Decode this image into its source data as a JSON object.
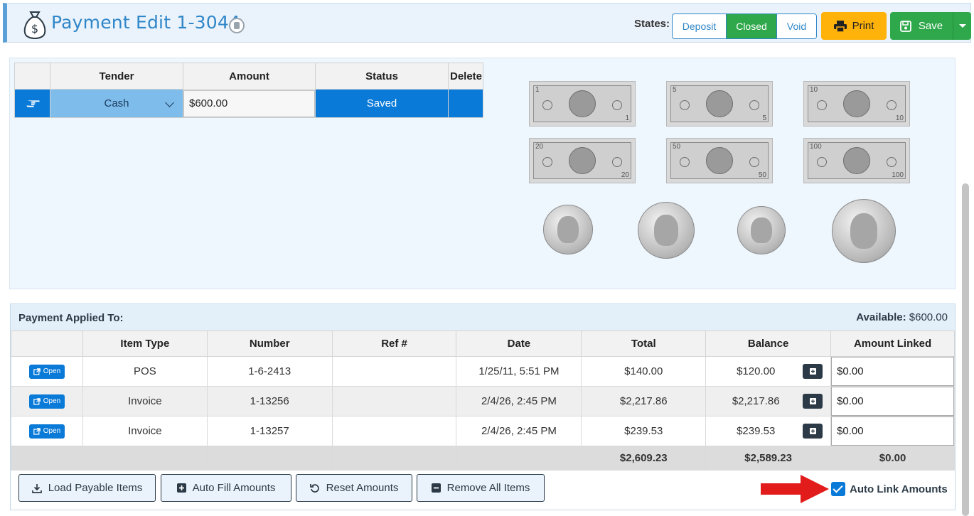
{
  "header": {
    "title": "Payment Edit 1-3044",
    "states_label": "States:",
    "states": [
      {
        "label": "Deposit",
        "active": false
      },
      {
        "label": "Closed",
        "active": true
      },
      {
        "label": "Void",
        "active": false
      }
    ],
    "print_label": "Print",
    "save_label": "Save"
  },
  "tender_table": {
    "columns": [
      "Tender",
      "Amount",
      "Status",
      "Delete"
    ],
    "rows": [
      {
        "tender": "Cash",
        "amount": "$600.00",
        "status": "Saved"
      }
    ]
  },
  "currency": {
    "bills": [
      {
        "name": "one-dollar-bill",
        "corner": "1"
      },
      {
        "name": "five-dollar-bill",
        "corner": "5"
      },
      {
        "name": "ten-dollar-bill",
        "corner": "10"
      },
      {
        "name": "twenty-dollar-bill",
        "corner": "20"
      },
      {
        "name": "fifty-dollar-bill",
        "corner": "50"
      },
      {
        "name": "hundred-dollar-bill",
        "corner": "100"
      }
    ],
    "coins": [
      "penny-coin",
      "nickel-coin",
      "dime-coin",
      "quarter-coin"
    ]
  },
  "applied": {
    "title": "Payment Applied To:",
    "available_label": "Available:",
    "available_value": "$600.00",
    "columns": [
      "",
      "Item Type",
      "Number",
      "Ref #",
      "Date",
      "Total",
      "Balance",
      "Amount Linked"
    ],
    "open_label": "Open",
    "rows": [
      {
        "item_type": "POS",
        "number": "1-6-2413",
        "ref": "",
        "date": "1/25/11, 5:51 PM",
        "total": "$140.00",
        "balance": "$120.00",
        "linked": "$0.00"
      },
      {
        "item_type": "Invoice",
        "number": "1-13256",
        "ref": "",
        "date": "2/4/26, 2:45 PM",
        "total": "$2,217.86",
        "balance": "$2,217.86",
        "linked": "$0.00"
      },
      {
        "item_type": "Invoice",
        "number": "1-13257",
        "ref": "",
        "date": "2/4/26, 2:45 PM",
        "total": "$239.53",
        "balance": "$239.53",
        "linked": "$0.00"
      }
    ],
    "totals": {
      "total": "$2,609.23",
      "balance": "$2,589.23",
      "linked": "$0.00"
    },
    "actions": {
      "load": "Load Payable Items",
      "auto_fill": "Auto Fill Amounts",
      "reset": "Reset Amounts",
      "remove_all": "Remove All Items"
    },
    "auto_link_label": "Auto Link Amounts",
    "auto_link_checked": true
  },
  "colors": {
    "primary": "#0a7ad8",
    "success": "#2ea84a",
    "warning": "#ffb20a",
    "title": "#2f86c8",
    "dark": "#2b3a46",
    "arrow": "#e21b1b"
  }
}
